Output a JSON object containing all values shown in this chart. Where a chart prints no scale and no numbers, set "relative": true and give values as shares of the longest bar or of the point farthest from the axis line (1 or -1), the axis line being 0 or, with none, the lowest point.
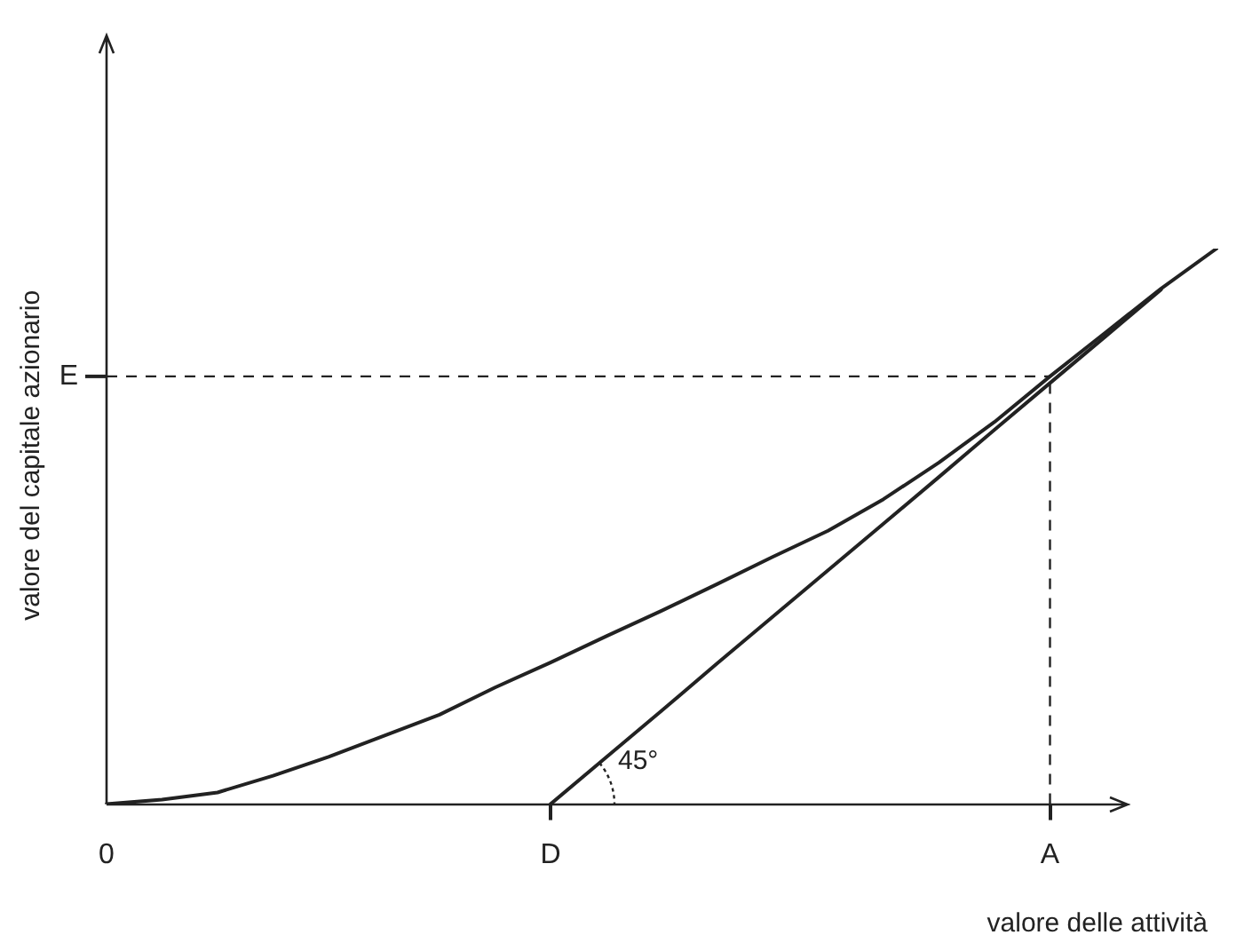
{
  "chart_data": {
    "type": "line",
    "xlabel": "valore delle attività",
    "ylabel": "valore del capitale azionario",
    "relative": true,
    "marker": "none",
    "categories": [
      "0",
      null,
      null,
      null,
      null,
      null,
      null,
      null,
      "D",
      null,
      null,
      null,
      null,
      null,
      null,
      null,
      null,
      "A",
      null,
      null,
      null
    ],
    "series": [
      {
        "color": "#222222",
        "values": [
          0,
          0.008,
          0.021,
          0.051,
          0.085,
          0.123,
          0.161,
          0.21,
          0.255,
          0.302,
          0.348,
          0.396,
          0.445,
          0.492,
          0.549,
          0.615,
          0.688,
          0.77,
          0.849,
          0.928,
          1
        ]
      },
      {
        "color": "#222222",
        "values": [
          null,
          null,
          null,
          null,
          null,
          null,
          null,
          null,
          0,
          0.084,
          0.168,
          0.253,
          0.337,
          0.421,
          0.505,
          0.589,
          0.674,
          0.758,
          0.842,
          0.926,
          null
        ]
      }
    ],
    "ref_lines": [
      {
        "axis": "y",
        "value": 0.77,
        "label": "E",
        "color": "#222222",
        "line_style": "dashed"
      },
      {
        "axis": "x",
        "value": "A",
        "color": "#222222",
        "line_style": "dashed"
      }
    ],
    "annotations": [
      {
        "text": "45°",
        "x": "D",
        "y": 0
      }
    ]
  }
}
